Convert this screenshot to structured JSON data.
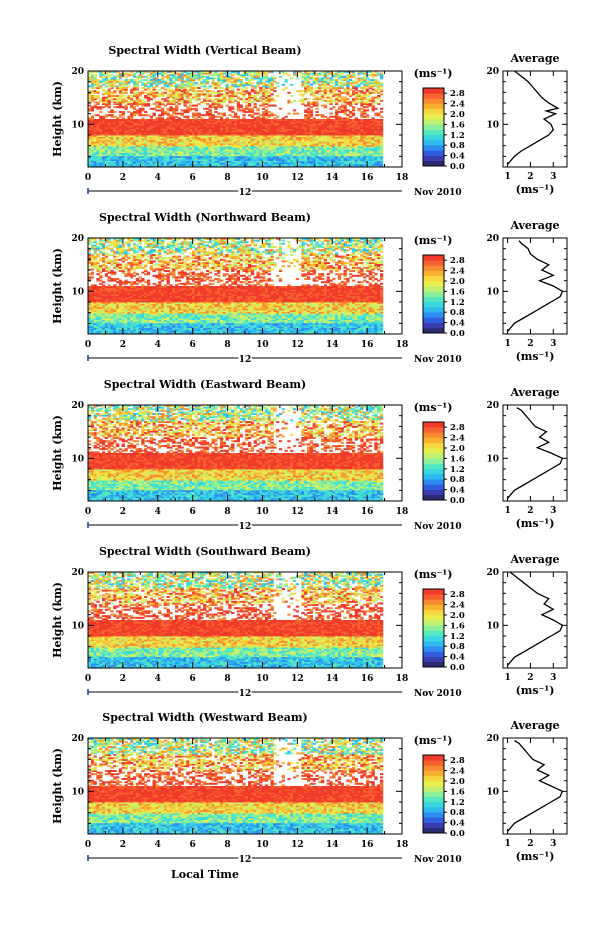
{
  "figure": {
    "x_axis_label": "Local Time",
    "date_label": "Nov 2010",
    "day_label": "12",
    "y_axis_label": "Height (km)",
    "unit_label": "(ms⁻¹)",
    "average_title": "Average",
    "average_xlabel": "(ms⁻¹)"
  },
  "chart_data": [
    {
      "type": "heatmap",
      "title": "Spectral Width (Vertical Beam)",
      "ylabel": "Height (km)",
      "xlim": [
        0,
        18
      ],
      "ylim": [
        2,
        20
      ],
      "xticks": [
        0,
        2,
        4,
        6,
        8,
        10,
        12,
        14,
        16,
        18
      ],
      "yticks": [
        10,
        20
      ],
      "data_end_hour": 16.9,
      "colorbar": {
        "ticks": [
          0.0,
          0.4,
          0.8,
          1.2,
          1.6,
          2.0,
          2.4,
          2.8
        ],
        "range": [
          0,
          3.0
        ]
      },
      "average_profile": {
        "title": "Average",
        "xlabel": "(ms⁻¹)",
        "xticks": [
          1,
          2,
          3
        ],
        "xlim": [
          0.8,
          3.6
        ],
        "heights": [
          2.5,
          4,
          5,
          6,
          7,
          8,
          9,
          10,
          11,
          12,
          12.5,
          13,
          14,
          15,
          16,
          17,
          18,
          19,
          20
        ],
        "values": [
          1.0,
          1.3,
          1.6,
          2.0,
          2.4,
          2.8,
          3.0,
          2.9,
          2.6,
          3.1,
          2.7,
          3.2,
          2.8,
          2.5,
          2.3,
          2.1,
          1.9,
          1.6,
          1.3
        ]
      }
    },
    {
      "type": "heatmap",
      "title": "Spectral Width (Northward Beam)",
      "ylabel": "Height (km)",
      "xlim": [
        0,
        18
      ],
      "ylim": [
        2,
        20
      ],
      "xticks": [
        0,
        2,
        4,
        6,
        8,
        10,
        12,
        14,
        16,
        18
      ],
      "yticks": [
        10,
        20
      ],
      "data_end_hour": 16.9,
      "colorbar": {
        "ticks": [
          0.0,
          0.4,
          0.8,
          1.2,
          1.6,
          2.0,
          2.4,
          2.8
        ],
        "range": [
          0,
          3.0
        ]
      },
      "average_profile": {
        "title": "Average",
        "xlabel": "(ms⁻¹)",
        "xticks": [
          1,
          2,
          3
        ],
        "xlim": [
          0.8,
          3.6
        ],
        "heights": [
          2.5,
          4,
          5,
          6,
          7,
          8,
          9,
          10,
          11,
          12,
          13,
          14,
          15,
          16,
          17,
          18,
          19,
          19.5
        ],
        "values": [
          1.0,
          1.3,
          1.7,
          2.1,
          2.5,
          2.9,
          3.3,
          3.4,
          3.0,
          2.4,
          3.0,
          2.5,
          2.8,
          2.3,
          2.0,
          1.9,
          1.6,
          1.5
        ]
      }
    },
    {
      "type": "heatmap",
      "title": "Spectral Width (Eastward Beam)",
      "ylabel": "Height (km)",
      "xlim": [
        0,
        18
      ],
      "ylim": [
        2,
        20
      ],
      "xticks": [
        0,
        2,
        4,
        6,
        8,
        10,
        12,
        14,
        16,
        18
      ],
      "yticks": [
        10,
        20
      ],
      "data_end_hour": 16.9,
      "colorbar": {
        "ticks": [
          0.0,
          0.4,
          0.8,
          1.2,
          1.6,
          2.0,
          2.4,
          2.8
        ],
        "range": [
          0,
          3.0
        ]
      },
      "average_profile": {
        "title": "Average",
        "xlabel": "(ms⁻¹)",
        "xticks": [
          1,
          2,
          3
        ],
        "xlim": [
          0.8,
          3.6
        ],
        "heights": [
          2.5,
          4,
          5,
          6,
          7,
          8,
          9,
          10,
          11,
          12,
          13,
          14,
          15,
          16,
          17,
          18,
          19,
          19.5
        ],
        "values": [
          1.0,
          1.3,
          1.7,
          2.1,
          2.5,
          2.9,
          3.3,
          3.4,
          2.9,
          2.3,
          2.8,
          2.4,
          2.7,
          2.2,
          2.0,
          1.8,
          1.6,
          1.4
        ]
      }
    },
    {
      "type": "heatmap",
      "title": "Spectral Width (Southward Beam)",
      "ylabel": "Height (km)",
      "xlim": [
        0,
        18
      ],
      "ylim": [
        2,
        20
      ],
      "xticks": [
        0,
        2,
        4,
        6,
        8,
        10,
        12,
        14,
        16,
        18
      ],
      "yticks": [
        10,
        20
      ],
      "data_end_hour": 16.9,
      "colorbar": {
        "ticks": [
          0.0,
          0.4,
          0.8,
          1.2,
          1.6,
          2.0,
          2.4,
          2.8
        ],
        "range": [
          0,
          3.0
        ]
      },
      "average_profile": {
        "title": "Average",
        "xlabel": "(ms⁻¹)",
        "xticks": [
          1,
          2,
          3
        ],
        "xlim": [
          0.8,
          3.6
        ],
        "heights": [
          2.5,
          4,
          5,
          6,
          7,
          8,
          9,
          10,
          11,
          12,
          13,
          14,
          15,
          16,
          17,
          18,
          19,
          20
        ],
        "values": [
          1.0,
          1.3,
          1.7,
          2.1,
          2.5,
          2.9,
          3.3,
          3.4,
          3.0,
          2.5,
          3.0,
          2.6,
          2.8,
          2.3,
          2.0,
          1.7,
          1.4,
          1.1
        ]
      }
    },
    {
      "type": "heatmap",
      "title": "Spectral Width (Westward Beam)",
      "ylabel": "Height (km)",
      "xlim": [
        0,
        18
      ],
      "ylim": [
        2,
        20
      ],
      "xticks": [
        0,
        2,
        4,
        6,
        8,
        10,
        12,
        14,
        16,
        18
      ],
      "yticks": [
        10,
        20
      ],
      "data_end_hour": 16.9,
      "colorbar": {
        "ticks": [
          0.0,
          0.4,
          0.8,
          1.2,
          1.6,
          2.0,
          2.4,
          2.8
        ],
        "range": [
          0,
          3.0
        ]
      },
      "average_profile": {
        "title": "Average",
        "xlabel": "(ms⁻¹)",
        "xticks": [
          1,
          2,
          3
        ],
        "xlim": [
          0.8,
          3.6
        ],
        "heights": [
          2.5,
          4,
          5,
          6,
          7,
          8,
          9,
          10,
          11,
          12,
          13,
          14,
          15,
          16,
          17,
          18,
          19,
          19.5
        ],
        "values": [
          1.0,
          1.3,
          1.7,
          2.1,
          2.5,
          2.9,
          3.3,
          3.4,
          2.9,
          2.4,
          2.8,
          2.3,
          2.6,
          2.1,
          1.9,
          1.7,
          1.5,
          1.3
        ]
      }
    }
  ]
}
